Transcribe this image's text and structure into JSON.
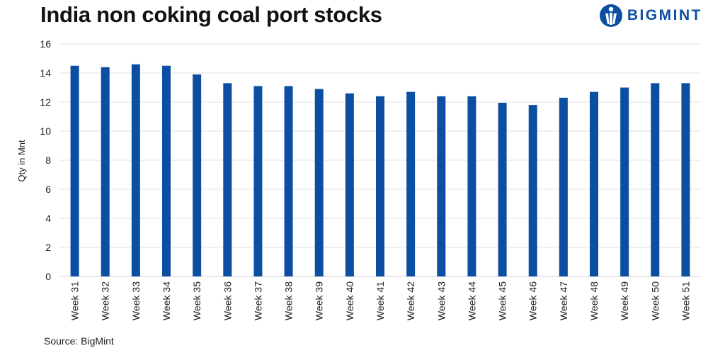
{
  "page": {
    "title": "India non coking coal port stocks",
    "source": "Source: BigMint"
  },
  "brand": {
    "name": "BIGMINT",
    "icon": "bigmint-logo-icon",
    "color": "#0b4ea2"
  },
  "chart_data": {
    "type": "bar",
    "title": "India non coking coal port stocks",
    "xlabel": "",
    "ylabel": "Qty in Mnt",
    "ylim": [
      0,
      16
    ],
    "yticks": [
      0,
      2,
      4,
      6,
      8,
      10,
      12,
      14,
      16
    ],
    "grid": true,
    "legend": "none",
    "bar_color": "#0b4ea2",
    "categories": [
      "Week 31",
      "Week 32",
      "Week 33",
      "Week 34",
      "Week 35",
      "Week 36",
      "Week 37",
      "Week 38",
      "Week 39",
      "Week 40",
      "Week 41",
      "Week 42",
      "Week 43",
      "Week 44",
      "Week 45",
      "Week 46",
      "Week 47",
      "Week 48",
      "Week 49",
      "Week 50",
      "Week 51"
    ],
    "values": [
      14.5,
      14.4,
      14.6,
      14.5,
      13.9,
      13.3,
      13.1,
      13.1,
      12.9,
      12.6,
      12.4,
      12.7,
      12.4,
      12.4,
      11.95,
      11.8,
      12.3,
      12.7,
      13.0,
      13.3,
      13.3
    ]
  }
}
